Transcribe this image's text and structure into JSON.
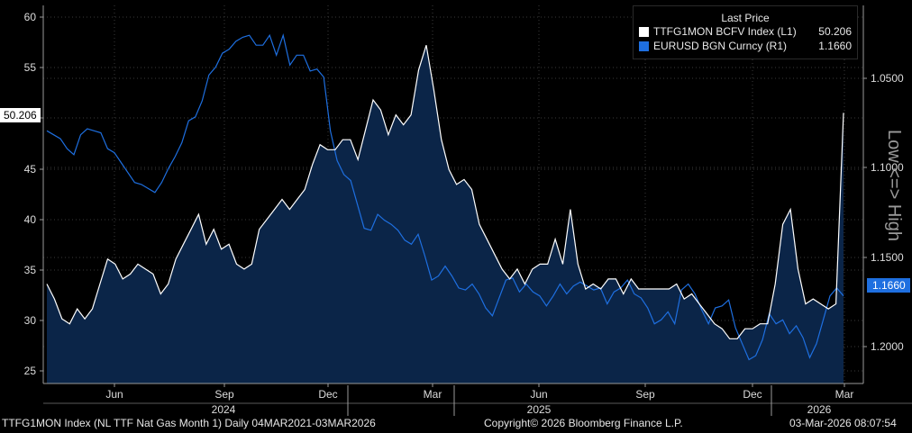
{
  "legend": {
    "title": "Last Price",
    "items": [
      {
        "name": "TTFG1MON BCFV Index  (L1)",
        "value": "50.206",
        "color": "#ffffff"
      },
      {
        "name": "EURUSD BGN Curncy  (R1)",
        "value": "1.1660",
        "color": "#1e6fe0"
      }
    ]
  },
  "right_axis_title": "Low <=> High",
  "last_labels": {
    "left": "50.206",
    "right": "1.1660"
  },
  "footer": {
    "left": "TTFG1MON Index (NL TTF Nat Gas Month 1) Daily 04MAR2021-03MAR2026",
    "center": "Copyright© 2026 Bloomberg Finance L.P.",
    "right": "03-Mar-2026 08:07:54"
  },
  "chart_data": {
    "type": "line",
    "x_labels": [
      "Jun",
      "Sep",
      "Dec",
      "Mar",
      "Jun",
      "Sep",
      "Dec",
      "Mar"
    ],
    "year_labels": [
      "2024",
      "2025",
      "2026"
    ],
    "left_axis": {
      "ticks": [
        "25",
        "30",
        "35",
        "40",
        "45",
        "50",
        "55",
        "60"
      ],
      "ylim": [
        23,
        61
      ]
    },
    "right_axis": {
      "ticks": [
        "1.2000",
        "1.1500",
        "1.1000",
        "1.0500"
      ],
      "ylim": [
        1.02,
        1.21
      ],
      "inverted": true
    },
    "grid": true,
    "series": [
      {
        "name": "TTFG1MON BCFV Index",
        "axis": "left",
        "color": "#ffffff",
        "fill": "#0b2548",
        "values": [
          33,
          31.5,
          29.5,
          29,
          30.5,
          29.5,
          30.5,
          33,
          35.5,
          35,
          33.5,
          34,
          35,
          34.5,
          34,
          32,
          33,
          35.5,
          37,
          38.5,
          40,
          37,
          38.5,
          36.5,
          37,
          35,
          34.5,
          35,
          38.5,
          39.5,
          40.5,
          41.5,
          40.5,
          41.5,
          42.5,
          45,
          47,
          46.5,
          46.5,
          47.5,
          47.5,
          45.5,
          48.5,
          51.5,
          50.5,
          48,
          50,
          49,
          50,
          54.5,
          57,
          52.5,
          47.5,
          44.5,
          43,
          43.5,
          42.5,
          39,
          37.5,
          36,
          34.5,
          33.5,
          34.5,
          33,
          34.5,
          35,
          35,
          37.5,
          35,
          40.5,
          35,
          32.5,
          33,
          32.5,
          33.5,
          33.5,
          32,
          33.5,
          32.5,
          32.5,
          32.5,
          32.5,
          32.5,
          33,
          31.5,
          32,
          31,
          30,
          29,
          28.5,
          27.5,
          27.5,
          28.5,
          28.5,
          29,
          29,
          33,
          39,
          40.5,
          34.5,
          31,
          31.5,
          31,
          30.5,
          31,
          50.2
        ]
      },
      {
        "name": "EURUSD BGN Curncy",
        "axis": "right",
        "color": "#1e6fe0",
        "values": [
          1.083,
          1.085,
          1.087,
          1.092,
          1.095,
          1.085,
          1.082,
          1.083,
          1.084,
          1.092,
          1.094,
          1.099,
          1.104,
          1.109,
          1.11,
          1.112,
          1.114,
          1.109,
          1.102,
          1.096,
          1.089,
          1.078,
          1.076,
          1.068,
          1.055,
          1.051,
          1.044,
          1.042,
          1.038,
          1.036,
          1.035,
          1.04,
          1.04,
          1.035,
          1.045,
          1.035,
          1.05,
          1.045,
          1.045,
          1.053,
          1.052,
          1.056,
          1.083,
          1.098,
          1.105,
          1.108,
          1.12,
          1.132,
          1.133,
          1.125,
          1.128,
          1.13,
          1.133,
          1.138,
          1.14,
          1.135,
          1.146,
          1.158,
          1.156,
          1.151,
          1.156,
          1.162,
          1.163,
          1.16,
          1.165,
          1.172,
          1.176,
          1.167,
          1.158,
          1.157,
          1.164,
          1.16,
          1.164,
          1.166,
          1.171,
          1.166,
          1.16,
          1.165,
          1.161,
          1.159,
          1.161,
          1.163,
          1.162,
          1.17,
          1.164,
          1.162,
          1.158,
          1.165,
          1.167,
          1.172,
          1.18,
          1.178,
          1.174,
          1.18,
          1.163,
          1.16,
          1.165,
          1.173,
          1.18,
          1.172,
          1.171,
          1.168,
          1.182,
          1.19,
          1.198,
          1.196,
          1.188,
          1.175,
          1.18,
          1.178,
          1.185,
          1.181,
          1.187,
          1.197,
          1.19,
          1.178,
          1.166,
          1.162,
          1.166
        ]
      }
    ]
  }
}
